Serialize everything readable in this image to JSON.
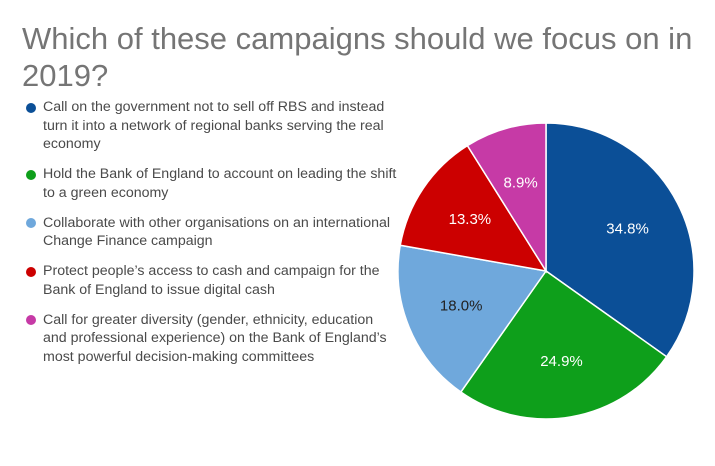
{
  "chart_data": {
    "type": "pie",
    "title": "Which of these campaigns should we focus on in 2019?",
    "legend_position": "left",
    "slices": [
      {
        "label": "Call on the government not to sell off RBS and instead turn it into a network of regional banks serving the real economy",
        "value": 34.8,
        "display": "34.8%",
        "color": "#0b4f97"
      },
      {
        "label": "Hold the Bank of England to account on leading the shift to a green economy",
        "value": 24.9,
        "display": "24.9%",
        "color": "#0e9f1b"
      },
      {
        "label": "Collaborate with other organisations on an international Change Finance campaign",
        "value": 18.0,
        "display": "18.0%",
        "color": "#6fa8dc"
      },
      {
        "label": "Protect people’s access to cash and campaign for the Bank of England to issue digital cash",
        "value": 13.3,
        "display": "13.3%",
        "color": "#cc0000"
      },
      {
        "label": "Call for greater diversity (gender, ethnicity, education and professional experience) on the Bank of England’s most powerful decision-making committees",
        "value": 8.9,
        "display": "8.9%",
        "color": "#c63aa6"
      }
    ]
  }
}
